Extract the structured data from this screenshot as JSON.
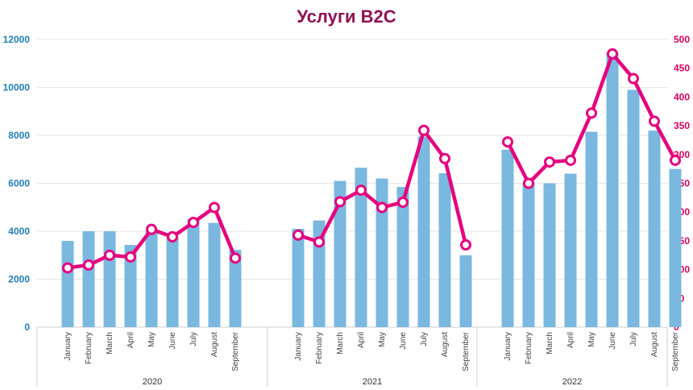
{
  "chart_data": {
    "type": "bar+line",
    "title": "Услуги B2C",
    "groups": [
      {
        "label": "2020",
        "months": [
          "January",
          "February",
          "March",
          "April",
          "May",
          "June",
          "July",
          "August",
          "September"
        ]
      },
      {
        "label": "2021",
        "months": [
          "January",
          "February",
          "March",
          "April",
          "May",
          "June",
          "July",
          "August",
          "September"
        ]
      },
      {
        "label": "2022",
        "months": [
          "January",
          "February",
          "March",
          "April",
          "May",
          "June",
          "July",
          "August",
          "September"
        ]
      }
    ],
    "series": [
      {
        "kind": "bar",
        "axis": "left",
        "values": [
          3600,
          4000,
          4000,
          3430,
          4000,
          3750,
          4520,
          4350,
          3220,
          4100,
          4450,
          6100,
          6650,
          6200,
          5850,
          7950,
          6420,
          3000,
          7400,
          6050,
          6000,
          6400,
          8150,
          11450,
          9900,
          8200,
          6600
        ]
      },
      {
        "kind": "line",
        "axis": "right",
        "values": [
          103,
          108,
          125,
          122,
          170,
          157,
          182,
          208,
          120,
          160,
          148,
          218,
          238,
          208,
          217,
          342,
          293,
          143,
          322,
          250,
          287,
          290,
          372,
          475,
          432,
          358,
          290
        ]
      }
    ],
    "left_axis": {
      "min": 0,
      "max": 12000,
      "ticks": [
        "0",
        "2000",
        "4000",
        "6000",
        "8000",
        "10000",
        "12000"
      ]
    },
    "right_axis": {
      "min": 0,
      "max": 500,
      "ticks": [
        "0",
        "50",
        "100",
        "150",
        "200",
        "250",
        "300",
        "350",
        "400",
        "450",
        "500"
      ]
    },
    "grid": true,
    "colors": {
      "bar": "#7ab8df",
      "line": "#e6007e",
      "title": "#8e1253",
      "left_axis": "#1f7fb5",
      "right_axis": "#d6005f"
    }
  }
}
